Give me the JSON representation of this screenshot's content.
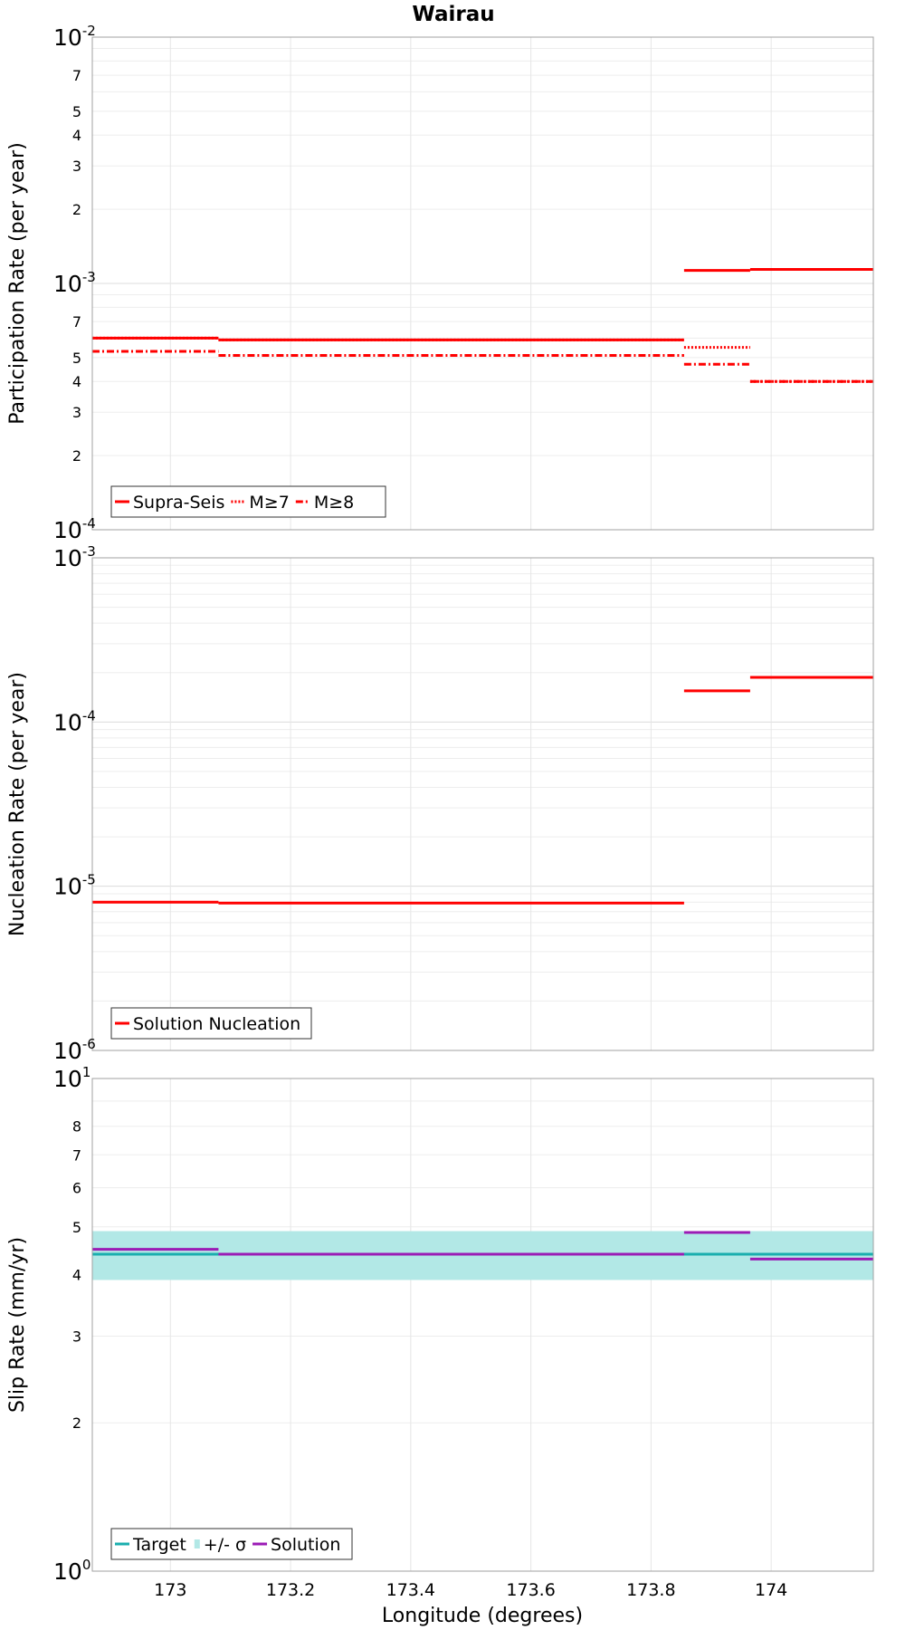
{
  "figure": {
    "title": "Wairau",
    "xlabel": "Longitude (degrees)"
  },
  "chart_data": [
    {
      "type": "line",
      "ylabel": "Participation Rate (per year)",
      "y_scale": "log",
      "ylim": [
        0.0001,
        0.01
      ],
      "xlim": [
        172.87,
        174.17
      ],
      "x_ticks": [
        "173",
        "173.2",
        "173.4",
        "173.6",
        "173.8",
        "174"
      ],
      "y_major_ticks": [
        {
          "value": 0.0001,
          "base": "10",
          "exp": "-4"
        },
        {
          "value": 0.001,
          "base": "10",
          "exp": "-3"
        },
        {
          "value": 0.01,
          "base": "10",
          "exp": "-2"
        }
      ],
      "y_minor_ticks": [
        {
          "value": 0.0002,
          "label": "2"
        },
        {
          "value": 0.0003,
          "label": "3"
        },
        {
          "value": 0.0004,
          "label": "4"
        },
        {
          "value": 0.0005,
          "label": "5"
        },
        {
          "value": 0.0007,
          "label": "7"
        },
        {
          "value": 0.002,
          "label": "2"
        },
        {
          "value": 0.003,
          "label": "3"
        },
        {
          "value": 0.004,
          "label": "4"
        },
        {
          "value": 0.005,
          "label": "5"
        },
        {
          "value": 0.007,
          "label": "7"
        }
      ],
      "grid": true,
      "legend_position": "bottom-left",
      "series": [
        {
          "name": "Supra-Seis",
          "color": "#ff0000",
          "style": "solid",
          "segments": [
            {
              "x0": 172.87,
              "x1": 173.08,
              "y": 0.0006
            },
            {
              "x0": 173.08,
              "x1": 173.855,
              "y": 0.00059
            },
            {
              "x0": 173.855,
              "x1": 173.965,
              "y": 0.00113
            },
            {
              "x0": 173.965,
              "x1": 174.17,
              "y": 0.00114
            }
          ]
        },
        {
          "name": "M≥7",
          "color": "#ff0000",
          "style": "dotted",
          "segments": [
            {
              "x0": 172.87,
              "x1": 173.08,
              "y": 0.0006
            },
            {
              "x0": 173.08,
              "x1": 173.855,
              "y": 0.00059
            },
            {
              "x0": 173.855,
              "x1": 173.965,
              "y": 0.00055
            },
            {
              "x0": 173.965,
              "x1": 174.17,
              "y": 0.0004
            }
          ]
        },
        {
          "name": "M≥8",
          "color": "#ff0000",
          "style": "dashdot",
          "segments": [
            {
              "x0": 172.87,
              "x1": 173.08,
              "y": 0.00053
            },
            {
              "x0": 173.08,
              "x1": 173.855,
              "y": 0.00051
            },
            {
              "x0": 173.855,
              "x1": 173.965,
              "y": 0.00047
            },
            {
              "x0": 173.965,
              "x1": 174.17,
              "y": 0.0004
            }
          ]
        }
      ]
    },
    {
      "type": "line",
      "ylabel": "Nucleation Rate (per year)",
      "y_scale": "log",
      "ylim": [
        1e-06,
        0.001
      ],
      "xlim": [
        172.87,
        174.17
      ],
      "x_ticks": [
        "173",
        "173.2",
        "173.4",
        "173.6",
        "173.8",
        "174"
      ],
      "y_major_ticks": [
        {
          "value": 1e-06,
          "base": "10",
          "exp": "-6"
        },
        {
          "value": 1e-05,
          "base": "10",
          "exp": "-5"
        },
        {
          "value": 0.0001,
          "base": "10",
          "exp": "-4"
        },
        {
          "value": 0.001,
          "base": "10",
          "exp": "-3"
        }
      ],
      "y_minor_ticks": [],
      "grid": true,
      "legend_position": "bottom-left",
      "series": [
        {
          "name": "Solution Nucleation",
          "color": "#ff0000",
          "style": "solid",
          "segments": [
            {
              "x0": 172.87,
              "x1": 173.08,
              "y": 8e-06
            },
            {
              "x0": 173.08,
              "x1": 173.855,
              "y": 7.9e-06
            },
            {
              "x0": 173.855,
              "x1": 173.965,
              "y": 0.000155
            },
            {
              "x0": 173.965,
              "x1": 174.17,
              "y": 0.000187
            }
          ]
        }
      ]
    },
    {
      "type": "line",
      "ylabel": "Slip Rate (mm/yr)",
      "y_scale": "log",
      "ylim": [
        1,
        10
      ],
      "xlim": [
        172.87,
        174.17
      ],
      "x_ticks": [
        "173",
        "173.2",
        "173.4",
        "173.6",
        "173.8",
        "174"
      ],
      "y_major_ticks": [
        {
          "value": 1,
          "base": "10",
          "exp": "0"
        },
        {
          "value": 10,
          "base": "10",
          "exp": "1"
        }
      ],
      "y_minor_ticks": [
        {
          "value": 2,
          "label": "2"
        },
        {
          "value": 3,
          "label": "3"
        },
        {
          "value": 4,
          "label": "4"
        },
        {
          "value": 5,
          "label": "5"
        },
        {
          "value": 6,
          "label": "6"
        },
        {
          "value": 7,
          "label": "7"
        },
        {
          "value": 8,
          "label": "8"
        }
      ],
      "grid": true,
      "legend_position": "bottom-left",
      "band": {
        "name": "+/- σ",
        "color": "#b2e8e6",
        "y0": 3.9,
        "y1": 4.9,
        "x0": 172.87,
        "x1": 174.17
      },
      "series": [
        {
          "name": "Target",
          "color": "#1aaeae",
          "style": "solid",
          "segments": [
            {
              "x0": 172.87,
              "x1": 174.17,
              "y": 4.4
            }
          ]
        },
        {
          "name": "Solution",
          "color": "#9b1bb5",
          "style": "solid",
          "segments": [
            {
              "x0": 172.87,
              "x1": 173.08,
              "y": 4.5
            },
            {
              "x0": 173.08,
              "x1": 173.855,
              "y": 4.4
            },
            {
              "x0": 173.855,
              "x1": 173.965,
              "y": 4.87
            },
            {
              "x0": 173.965,
              "x1": 174.17,
              "y": 4.3
            }
          ]
        }
      ],
      "legend_order": [
        "Target",
        "+/- σ",
        "Solution"
      ]
    }
  ]
}
